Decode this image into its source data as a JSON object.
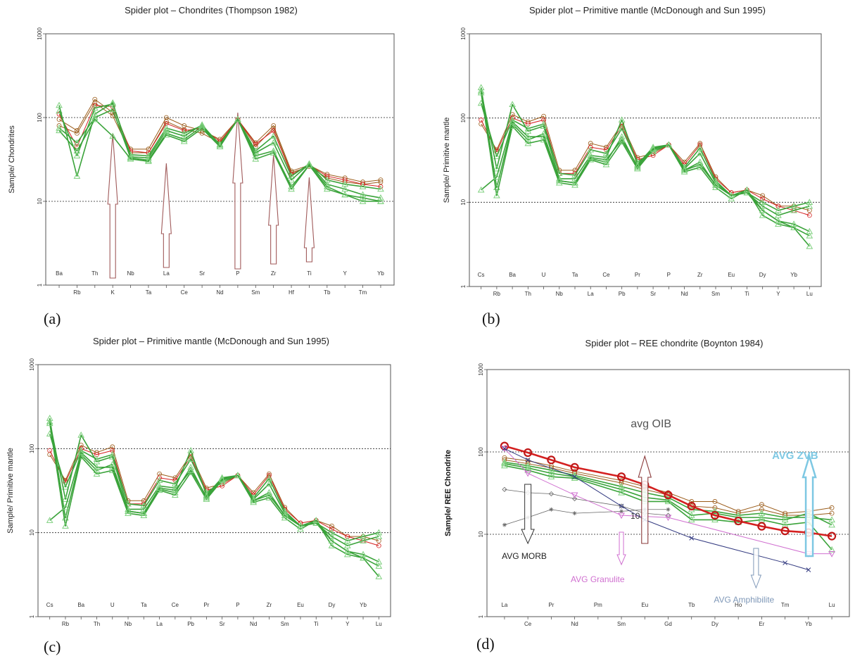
{
  "panel_labels": [
    "(a)",
    "(b)",
    "(c)",
    "(d)"
  ],
  "colors": {
    "green": "#3aa33a",
    "light_green": "#7fd07f",
    "red": "#d42020",
    "brown": "#9b5c1a",
    "arrow_outline": "#a05a5a",
    "magenta": "#d070d0",
    "navy": "#333a80",
    "gray": "#666666",
    "zvb": "#7ec8e3",
    "amph": "#7f98b8"
  },
  "chart_data": [
    {
      "id": "a",
      "type": "line",
      "title": "Spider plot – Chondrites (Thompson 1982)",
      "ylabel": "Sample/ Chondrites",
      "scale": "log",
      "ylim": [
        1,
        1000
      ],
      "yticks": [
        "1",
        "10",
        "100",
        "1000"
      ],
      "grid": "dotted at 10 and 100",
      "x_top": [
        "Ba",
        "Th",
        "Nb",
        "La",
        "Sr",
        "P",
        "Zr",
        "Ti",
        "Y",
        "Yb"
      ],
      "x_bottom": [
        "Rb",
        "K",
        "Ta",
        "Ce",
        "Nd",
        "Sm",
        "Hf",
        "Tb",
        "Tm"
      ],
      "categories": [
        "Ba",
        "Rb",
        "Th",
        "K",
        "Nb",
        "Ta",
        "La",
        "Ce",
        "Sr",
        "Nd",
        "P",
        "Sm",
        "Zr",
        "Hf",
        "Ti",
        "Tb",
        "Y",
        "Tm",
        "Yb"
      ],
      "series": [
        {
          "values": [
            95,
            70,
            165,
            115,
            42,
            42,
            100,
            80,
            70,
            55,
            95,
            50,
            80,
            23,
            27,
            21,
            19,
            17,
            18
          ],
          "style": "brown"
        },
        {
          "values": [
            80,
            65,
            150,
            105,
            38,
            38,
            90,
            72,
            65,
            50,
            95,
            45,
            75,
            22,
            26,
            19,
            17,
            16,
            17
          ],
          "style": "brown"
        },
        {
          "values": [
            110,
            45,
            140,
            135,
            40,
            38,
            85,
            70,
            75,
            52,
            95,
            48,
            70,
            21,
            27,
            20,
            18,
            16,
            15
          ],
          "style": "red"
        },
        {
          "values": [
            120,
            35,
            130,
            145,
            36,
            35,
            75,
            65,
            80,
            48,
            95,
            40,
            60,
            20,
            28,
            18,
            16,
            15,
            14
          ],
          "style": "green"
        },
        {
          "values": [
            140,
            20,
            110,
            150,
            34,
            33,
            70,
            60,
            82,
            47,
            95,
            38,
            50,
            18,
            28,
            16,
            14,
            12,
            11
          ],
          "style": "green"
        },
        {
          "values": [
            75,
            50,
            100,
            125,
            33,
            31,
            65,
            55,
            78,
            45,
            95,
            35,
            40,
            15,
            27,
            14,
            12,
            10,
            10
          ],
          "style": "green"
        },
        {
          "values": [
            70,
            40,
            95,
            60,
            32,
            30,
            62,
            52,
            74,
            45,
            95,
            32,
            38,
            14,
            27,
            15,
            12,
            11,
            10
          ],
          "style": "green"
        }
      ],
      "arrows_at": [
        "K",
        "La",
        "P",
        "Zr",
        "Ti"
      ]
    },
    {
      "id": "b",
      "type": "line",
      "title": "Spider plot – Primitive mantle (McDonough  and  Sun 1995)",
      "ylabel": "Sample/ Primitive mantle",
      "scale": "log",
      "ylim": [
        1,
        1000
      ],
      "yticks": [
        "1",
        "10",
        "100",
        "1000"
      ],
      "grid": "dotted at 10 and 100",
      "x_top": [
        "Cs",
        "Ba",
        "U",
        "Ta",
        "Ce",
        "Pr",
        "P",
        "Zr",
        "Eu",
        "Dy",
        "Yb"
      ],
      "x_bottom": [
        "Rb",
        "Th",
        "Nb",
        "La",
        "Pb",
        "Sr",
        "Nd",
        "Sm",
        "Ti",
        "Y",
        "Lu"
      ],
      "categories": [
        "Cs",
        "Rb",
        "Ba",
        "Th",
        "U",
        "Nb",
        "Ta",
        "La",
        "Ce",
        "Pb",
        "Pr",
        "Sr",
        "P",
        "Nd",
        "Zr",
        "Sm",
        "Eu",
        "Ti",
        "Dy",
        "Y",
        "Yb",
        "Lu"
      ],
      "series": [
        {
          "values": [
            85,
            42,
            110,
            90,
            105,
            24,
            24,
            50,
            45,
            85,
            34,
            38,
            48,
            30,
            50,
            20,
            13,
            14,
            12,
            9,
            9,
            8
          ],
          "style": "brown"
        },
        {
          "values": [
            95,
            40,
            100,
            85,
            95,
            22,
            22,
            45,
            42,
            80,
            32,
            36,
            48,
            28,
            48,
            19,
            13,
            14,
            11,
            9,
            8,
            7
          ],
          "style": "red"
        },
        {
          "values": [
            150,
            35,
            95,
            75,
            85,
            22,
            21,
            42,
            38,
            75,
            30,
            40,
            48,
            26,
            44,
            18,
            12,
            13,
            10,
            8,
            9,
            10
          ],
          "style": "green"
        },
        {
          "values": [
            210,
            25,
            145,
            70,
            80,
            19,
            19,
            36,
            34,
            95,
            28,
            45,
            48,
            25,
            38,
            17,
            12,
            13,
            9,
            7,
            8,
            9
          ],
          "style": "green"
        },
        {
          "values": [
            230,
            15,
            85,
            55,
            65,
            18,
            17,
            33,
            30,
            60,
            26,
            44,
            48,
            24,
            30,
            16,
            12,
            13,
            8,
            6,
            5,
            4
          ],
          "style": "green"
        },
        {
          "values": [
            200,
            12,
            80,
            50,
            55,
            17,
            16,
            32,
            28,
            52,
            25,
            42,
            48,
            23,
            26,
            15,
            11,
            14,
            7,
            5.5,
            5,
            3
          ],
          "style": "green"
        },
        {
          "values": [
            14,
            20,
            90,
            60,
            60,
            18,
            17,
            34,
            32,
            55,
            27,
            43,
            48,
            24,
            28,
            16,
            12,
            14,
            8,
            6,
            5.5,
            4.5
          ],
          "style": "green"
        }
      ]
    },
    {
      "id": "c",
      "type": "line",
      "title": "Spider plot – Primitive mantle (McDonough  and  Sun 1995)",
      "ylabel": "Sample/ Primitive mantle",
      "scale": "log",
      "ylim": [
        1,
        1000
      ],
      "yticks": [
        "1",
        "10",
        "100",
        "1000"
      ],
      "grid": "dotted at 10 and 100",
      "x_top": [
        "Cs",
        "Ba",
        "U",
        "Ta",
        "Ce",
        "Pr",
        "P",
        "Zr",
        "Eu",
        "Dy",
        "Yb"
      ],
      "x_bottom": [
        "Rb",
        "Th",
        "Nb",
        "La",
        "Pb",
        "Sr",
        "Nd",
        "Sm",
        "Ti",
        "Y",
        "Lu"
      ],
      "categories": [
        "Cs",
        "Rb",
        "Ba",
        "Th",
        "U",
        "Nb",
        "Ta",
        "La",
        "Ce",
        "Pb",
        "Pr",
        "Sr",
        "P",
        "Nd",
        "Zr",
        "Sm",
        "Eu",
        "Ti",
        "Dy",
        "Y",
        "Yb",
        "Lu"
      ],
      "series": [
        {
          "values": [
            85,
            42,
            110,
            90,
            105,
            24,
            24,
            50,
            45,
            85,
            34,
            38,
            48,
            30,
            50,
            20,
            13,
            14,
            12,
            9,
            9,
            8
          ],
          "style": "brown"
        },
        {
          "values": [
            95,
            40,
            100,
            85,
            95,
            22,
            22,
            45,
            42,
            80,
            32,
            36,
            48,
            28,
            48,
            19,
            13,
            14,
            11,
            9,
            8,
            7
          ],
          "style": "red"
        },
        {
          "values": [
            150,
            35,
            95,
            75,
            85,
            22,
            21,
            42,
            38,
            75,
            30,
            40,
            48,
            26,
            44,
            18,
            12,
            13,
            10,
            8,
            9,
            10
          ],
          "style": "green"
        },
        {
          "values": [
            210,
            25,
            145,
            70,
            80,
            19,
            19,
            36,
            34,
            95,
            28,
            45,
            48,
            25,
            38,
            17,
            12,
            13,
            9,
            7,
            8,
            9
          ],
          "style": "green"
        },
        {
          "values": [
            230,
            15,
            85,
            55,
            65,
            18,
            17,
            33,
            30,
            60,
            26,
            44,
            48,
            24,
            30,
            16,
            12,
            13,
            8,
            6,
            5,
            4
          ],
          "style": "green"
        },
        {
          "values": [
            200,
            12,
            80,
            50,
            55,
            17,
            16,
            32,
            28,
            52,
            25,
            42,
            48,
            23,
            26,
            15,
            11,
            14,
            7,
            5.5,
            5,
            3
          ],
          "style": "green"
        },
        {
          "values": [
            14,
            20,
            90,
            60,
            60,
            18,
            17,
            34,
            32,
            55,
            27,
            43,
            48,
            24,
            28,
            16,
            12,
            14,
            8,
            6,
            5.5,
            4.5
          ],
          "style": "green"
        }
      ]
    },
    {
      "id": "d",
      "type": "line",
      "title": "Spider plot – REE chondrite (Boynton 1984)",
      "ylabel": "Sample/ REE Chondrite",
      "scale": "log",
      "ylim": [
        1,
        1000
      ],
      "yticks": [
        "1",
        "10",
        "100",
        "1000"
      ],
      "grid": "dotted at 10 and 100",
      "x_top": [
        "La",
        "Pr",
        "Pm",
        "Eu",
        "Tb",
        "Ho",
        "Tm",
        "Lu"
      ],
      "x_bottom": [
        "Ce",
        "Nd",
        "Sm",
        "Gd",
        "Dy",
        "Er",
        "Yb"
      ],
      "categories": [
        "La",
        "Ce",
        "Pr",
        "Nd",
        "Pm",
        "Sm",
        "Eu",
        "Gd",
        "Tb",
        "Dy",
        "Ho",
        "Er",
        "Tm",
        "Yb",
        "Lu"
      ],
      "series": [
        {
          "values": [
            85,
            78,
            68,
            58,
            null,
            45,
            38,
            32,
            25,
            25,
            19,
            23,
            18,
            19,
            21
          ],
          "style": "brown"
        },
        {
          "values": [
            80,
            72,
            64,
            55,
            null,
            42,
            35,
            30,
            22,
            21,
            18,
            20,
            17,
            17,
            18
          ],
          "style": "brown"
        },
        {
          "values": [
            75,
            68,
            60,
            52,
            null,
            38,
            32,
            28,
            20,
            19,
            17,
            18,
            16,
            16,
            15
          ],
          "style": "green"
        },
        {
          "values": [
            72,
            64,
            55,
            50,
            null,
            35,
            28,
            26,
            17,
            18,
            16,
            16,
            15,
            18,
            13
          ],
          "style": "green"
        },
        {
          "values": [
            68,
            60,
            50,
            48,
            null,
            32,
            25,
            25,
            15,
            15,
            14,
            15,
            13,
            14,
            6.5
          ],
          "style": "green"
        },
        {
          "values": [
            118,
            98,
            80,
            65,
            null,
            50,
            40,
            30,
            22,
            17,
            14.5,
            12.5,
            11,
            10.5,
            9.5
          ],
          "style": "red-thick"
        },
        {
          "values": [
            35,
            32,
            31,
            27,
            null,
            22,
            18,
            17,
            null,
            null,
            null,
            null,
            null,
            null,
            null
          ],
          "style": "gray-diamond"
        },
        {
          "values": [
            13,
            16,
            20,
            18,
            null,
            19,
            20,
            20,
            null,
            null,
            null,
            null,
            null,
            null,
            null
          ],
          "style": "gray-star"
        },
        {
          "values": [
            110,
            55,
            null,
            30,
            null,
            17,
            null,
            16,
            null,
            null,
            null,
            null,
            null,
            5.8,
            5.8
          ],
          "style": "magenta-tri"
        },
        {
          "values": [
            110,
            80,
            null,
            50,
            null,
            22,
            15,
            null,
            9,
            null,
            null,
            null,
            4.5,
            3.7,
            null
          ],
          "style": "navy-x"
        }
      ],
      "annotations": [
        "avg OIB",
        "AVG ZVB",
        "AVG MORB",
        "AVG Granulite",
        "AVG Amphibilite",
        "10"
      ]
    }
  ]
}
